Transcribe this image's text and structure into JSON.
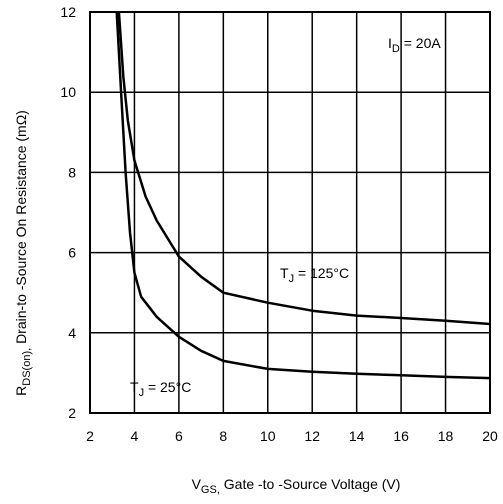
{
  "chart_data": {
    "type": "line",
    "x": {
      "ticks": [
        2,
        4,
        6,
        8,
        10,
        12,
        14,
        16,
        18,
        20
      ],
      "tick_labels": [
        "2",
        "4",
        "6",
        "8",
        "10",
        "12",
        "14",
        "16",
        "18",
        "20"
      ],
      "range": [
        2,
        20
      ],
      "label": {
        "prefix": "V",
        "sub": "GS,",
        "rest": " Gate -to -Source Voltage  (V)"
      }
    },
    "y": {
      "ticks": [
        2,
        4,
        6,
        8,
        10,
        12
      ],
      "tick_labels": [
        "2",
        "4",
        "6",
        "8",
        "10",
        "12"
      ],
      "range": [
        2,
        12
      ],
      "label": {
        "prefix": "R",
        "sub": "DS(on),",
        "rest": " Drain-to -Source On Resistance (mΩ)"
      }
    },
    "grid": true,
    "series": [
      {
        "label": {
          "prefix": "T",
          "sub": "J",
          "rest": " = 125°C"
        },
        "x": [
          3.3,
          3.5,
          3.7,
          4.0,
          4.5,
          5.0,
          6.0,
          7.0,
          8.0,
          10.0,
          12.0,
          14.0,
          16.0,
          18.0,
          20.0
        ],
        "values": [
          12.0,
          10.4,
          9.3,
          8.3,
          7.4,
          6.8,
          5.9,
          5.4,
          5.0,
          4.75,
          4.55,
          4.43,
          4.37,
          4.3,
          4.22
        ]
      },
      {
        "label": {
          "prefix": "T",
          "sub": "J",
          "rest": " = 25°C"
        },
        "x": [
          3.2,
          3.4,
          3.6,
          3.8,
          4.0,
          4.3,
          5.0,
          6.0,
          7.0,
          8.0,
          10.0,
          12.0,
          14.0,
          16.0,
          18.0,
          20.0
        ],
        "values": [
          12.0,
          10.0,
          8.0,
          6.5,
          5.5,
          4.9,
          4.4,
          3.9,
          3.55,
          3.3,
          3.1,
          3.03,
          2.98,
          2.94,
          2.9,
          2.87
        ]
      }
    ],
    "annotation": {
      "prefix": "I",
      "sub": "D",
      "rest": " = 20A"
    }
  }
}
